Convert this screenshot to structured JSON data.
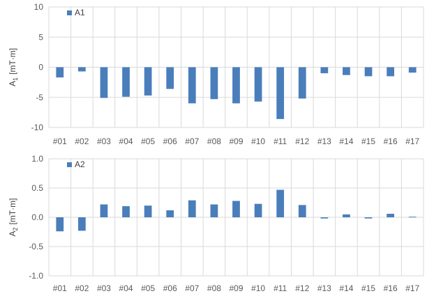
{
  "chart_data": [
    {
      "type": "bar",
      "ylabel": {
        "main": "A",
        "sub": "1",
        "unit": "[mT·m]"
      },
      "categories": [
        "#01",
        "#02",
        "#03",
        "#04",
        "#05",
        "#06",
        "#07",
        "#08",
        "#09",
        "#10",
        "#11",
        "#12",
        "#13",
        "#14",
        "#15",
        "#16",
        "#17"
      ],
      "series": [
        {
          "name": "A1",
          "color": "#4a7ebb",
          "values": [
            -1.7,
            -0.7,
            -5.1,
            -4.9,
            -4.7,
            -3.6,
            -6.0,
            -5.3,
            -6.0,
            -5.7,
            -8.6,
            -5.2,
            -1.0,
            -1.3,
            -1.5,
            -1.5,
            -0.9
          ]
        }
      ],
      "ylim": [
        -10,
        10
      ],
      "yticks": [
        10,
        5,
        0,
        -5,
        -10
      ],
      "ytick_labels": [
        "10",
        "5",
        "0",
        "-5",
        "-10"
      ],
      "legend": "top-left",
      "grid": true
    },
    {
      "type": "bar",
      "ylabel": {
        "main": "A",
        "sub": "2",
        "unit": "[mT·m]"
      },
      "categories": [
        "#01",
        "#02",
        "#03",
        "#04",
        "#05",
        "#06",
        "#07",
        "#08",
        "#09",
        "#10",
        "#11",
        "#12",
        "#13",
        "#14",
        "#15",
        "#16",
        "#17"
      ],
      "series": [
        {
          "name": "A2",
          "color": "#4a7ebb",
          "values": [
            -0.24,
            -0.23,
            0.22,
            0.19,
            0.2,
            0.12,
            0.29,
            0.22,
            0.28,
            0.23,
            0.47,
            0.21,
            -0.02,
            0.05,
            -0.02,
            0.06,
            0.01
          ]
        }
      ],
      "ylim": [
        -1.0,
        1.0
      ],
      "yticks": [
        1.0,
        0.5,
        0.0,
        -0.5,
        -1.0
      ],
      "ytick_labels": [
        "1.0",
        "0.5",
        "0.0",
        "-0.5",
        "-1.0"
      ],
      "legend": "top-left",
      "grid": true
    }
  ]
}
